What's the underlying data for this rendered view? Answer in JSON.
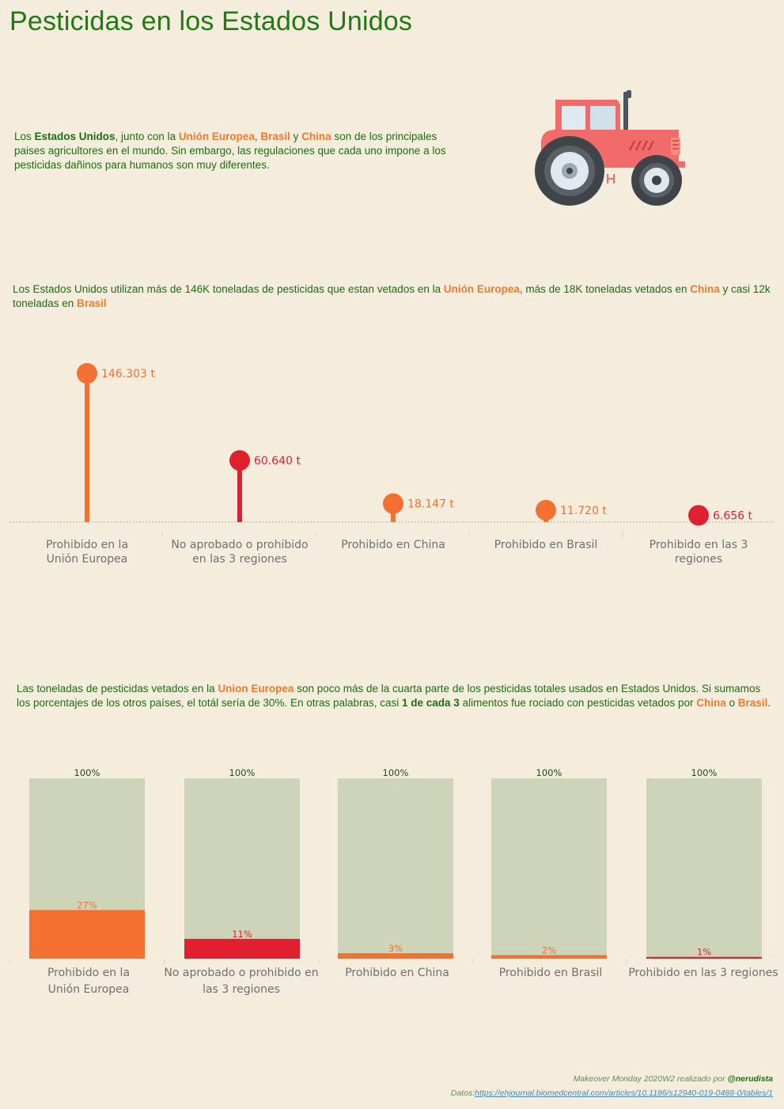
{
  "title": "Pesticidas en los Estados Unidos",
  "intro": {
    "t1": "Los ",
    "b1": "Estados Unidos",
    "t2": ", junto con la ",
    "b2": "Unión Europea",
    "t3": ", ",
    "b3": "Brasil",
    "t4": " y ",
    "b4": "China",
    "t5": " son de los principales paises agricultores en el mundo. Sin embargo, las regulaciones que cada uno impone a los pesticidas dañinos para humanos son muy diferentes."
  },
  "section2": {
    "t1": "Los Estados Unidos utilizan más de 146K toneladas de pesticidas que estan vetados en la ",
    "b1": "Unión Europea,",
    "t2": " más de 18K toneladas vetados en ",
    "b2": "China",
    "t3": " y casi 12k toneladas en ",
    "b3": "Brasil"
  },
  "section3": {
    "t1": "Las toneladas de pesticidas vetados en la ",
    "b1": "Union Europea",
    "t2": " son poco más de la cuarta parte de los pesticidas totales usados en Estados Unidos. Si sumamos los porcentajes de los otros países, el totál sería de 30%. En otras palabras, casi ",
    "b2": "1 de cada 3",
    "t3": " alimentos fue rociado con pesticidas vetados por ",
    "b3": "China",
    "t4": " o ",
    "b4": "Brasil",
    "t5": "."
  },
  "colors": {
    "orange": "#f47030",
    "red": "#e21f2f",
    "total_bar": "#ced4b8",
    "title_green": "#1f7a12",
    "axis_label": "#707070"
  },
  "icons": {
    "tractor": "tractor-icon"
  },
  "chart_data": [
    {
      "type": "lollipop",
      "categories": [
        "Prohibido en la Unión Europea",
        "No aprobado o prohibido en las 3 regiones",
        "Prohibido en China",
        "Prohibido en Brasil",
        "Prohibido en las 3 regiones"
      ],
      "values": [
        146303,
        60640,
        18147,
        11720,
        6656
      ],
      "labels": [
        "146.303 t",
        "60.640 t",
        "18.147 t",
        "11.720 t",
        "6.656 t"
      ],
      "colors": [
        "#f47030",
        "#e21f2f",
        "#f47030",
        "#f47030",
        "#e21f2f"
      ],
      "unit": "t",
      "ylim": [
        0,
        160000
      ],
      "grid": false
    },
    {
      "type": "bar",
      "categories": [
        "Prohibido en la Unión Europea",
        "No aprobado o prohibido en las 3 regiones",
        "Prohibido en China",
        "Prohibido en Brasil",
        "Prohibido en las 3 regiones"
      ],
      "series": [
        {
          "values": [
            100,
            100,
            100,
            100,
            100
          ],
          "labels": [
            "100%",
            "100%",
            "100%",
            "100%",
            "100%"
          ],
          "color": "#ced4b8"
        },
        {
          "values": [
            27,
            11,
            3,
            2,
            1
          ],
          "labels": [
            "27%",
            "11%",
            "3%",
            "2%",
            "1%"
          ],
          "colors": [
            "#f47030",
            "#e21f2f",
            "#f47030",
            "#f47030",
            "#e21f2f"
          ]
        }
      ],
      "ylim": [
        0,
        100
      ],
      "grid": false
    }
  ],
  "footer": {
    "credit_text": "Makeover Monday 2020W2 realizado por ",
    "credit_author": "@nerudista",
    "data_label": "Datos:",
    "data_link": "https://ehjournal.biomedcentral.com/articles/10.1186/s12940-019-0488-0/tables/1"
  }
}
